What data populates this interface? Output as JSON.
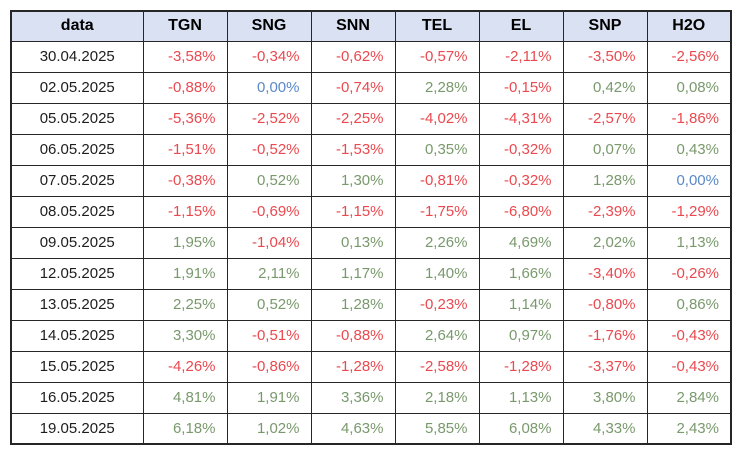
{
  "chart_data": {
    "type": "table",
    "columns": [
      "data",
      "TGN",
      "SNG",
      "SNN",
      "TEL",
      "EL",
      "SNP",
      "H2O"
    ],
    "rows": [
      {
        "data": "30.04.2025",
        "values": [
          "-3,58%",
          "-0,34%",
          "-0,62%",
          "-0,57%",
          "-2,11%",
          "-3,50%",
          "-2,56%"
        ]
      },
      {
        "data": "02.05.2025",
        "values": [
          "-0,88%",
          "0,00%",
          "-0,74%",
          "2,28%",
          "-0,15%",
          "0,42%",
          "0,08%"
        ]
      },
      {
        "data": "05.05.2025",
        "values": [
          "-5,36%",
          "-2,52%",
          "-2,25%",
          "-4,02%",
          "-4,31%",
          "-2,57%",
          "-1,86%"
        ]
      },
      {
        "data": "06.05.2025",
        "values": [
          "-1,51%",
          "-0,52%",
          "-1,53%",
          "0,35%",
          "-0,32%",
          "0,07%",
          "0,43%"
        ]
      },
      {
        "data": "07.05.2025",
        "values": [
          "-0,38%",
          "0,52%",
          "1,30%",
          "-0,81%",
          "-0,32%",
          "1,28%",
          "0,00%"
        ]
      },
      {
        "data": "08.05.2025",
        "values": [
          "-1,15%",
          "-0,69%",
          "-1,15%",
          "-1,75%",
          "-6,80%",
          "-2,39%",
          "-1,29%"
        ]
      },
      {
        "data": "09.05.2025",
        "values": [
          "1,95%",
          "-1,04%",
          "0,13%",
          "2,26%",
          "4,69%",
          "2,02%",
          "1,13%"
        ]
      },
      {
        "data": "12.05.2025",
        "values": [
          "1,91%",
          "2,11%",
          "1,17%",
          "1,40%",
          "1,66%",
          "-3,40%",
          "-0,26%"
        ]
      },
      {
        "data": "13.05.2025",
        "values": [
          "2,25%",
          "0,52%",
          "1,28%",
          "-0,23%",
          "1,14%",
          "-0,80%",
          "0,86%"
        ]
      },
      {
        "data": "14.05.2025",
        "values": [
          "3,30%",
          "-0,51%",
          "-0,88%",
          "2,64%",
          "0,97%",
          "-1,76%",
          "-0,43%"
        ]
      },
      {
        "data": "15.05.2025",
        "values": [
          "-4,26%",
          "-0,86%",
          "-1,28%",
          "-2,58%",
          "-1,28%",
          "-3,37%",
          "-0,43%"
        ]
      },
      {
        "data": "16.05.2025",
        "values": [
          "4,81%",
          "1,91%",
          "3,36%",
          "2,18%",
          "1,13%",
          "3,80%",
          "2,84%"
        ]
      },
      {
        "data": "19.05.2025",
        "values": [
          "6,18%",
          "1,02%",
          "4,63%",
          "5,85%",
          "6,08%",
          "4,33%",
          "2,43%"
        ]
      }
    ],
    "value_color_rule": {
      "negative": "red",
      "positive": "green",
      "zero": "blue"
    }
  },
  "colors": {
    "negative": "#e9494f",
    "positive": "#79996c",
    "zero": "#5b89c9",
    "header_bg": "#d9e1f2",
    "border": "#262626",
    "date_text": "#1d1d1d",
    "header_text": "#000000"
  }
}
